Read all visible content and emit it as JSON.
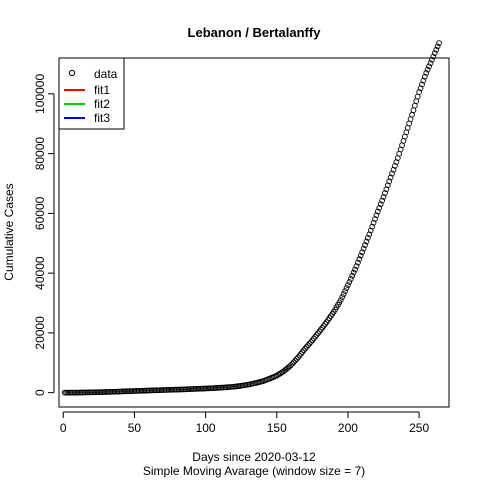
{
  "chart_data": {
    "type": "scatter",
    "title": "Lebanon / Bertalanffy",
    "xlabel": "Days since 2020-03-12",
    "xlabel2": "Simple Moving Avarage (window size = 7)",
    "ylabel": "Cumulative Cases",
    "xlim": [
      -3,
      271
    ],
    "ylim": [
      -4800,
      112000
    ],
    "x_ticks": [
      0,
      50,
      100,
      150,
      200,
      250
    ],
    "y_ticks": [
      0,
      20000,
      40000,
      60000,
      80000,
      100000
    ],
    "legend": {
      "position": "top-left",
      "items": [
        {
          "label": "data",
          "symbol": "circle",
          "color": "#000000"
        },
        {
          "label": "fit1",
          "symbol": "line",
          "color": "#ff0000"
        },
        {
          "label": "fit2",
          "symbol": "line",
          "color": "#00cd00"
        },
        {
          "label": "fit3",
          "symbol": "line",
          "color": "#0000ff"
        }
      ]
    },
    "series": [
      {
        "marker": "open-circle",
        "color": "#000000",
        "x": [
          1,
          5,
          10,
          15,
          20,
          25,
          30,
          35,
          40,
          45,
          50,
          55,
          60,
          65,
          70,
          75,
          80,
          85,
          90,
          95,
          100,
          105,
          110,
          115,
          120,
          125,
          130,
          135,
          140,
          145,
          150,
          155,
          160,
          165,
          170,
          175,
          180,
          185,
          190,
          195,
          200,
          205,
          210,
          215,
          220,
          225,
          230,
          235,
          240,
          245,
          250,
          255,
          260,
          264
        ],
        "y": [
          0,
          5,
          30,
          70,
          110,
          160,
          230,
          300,
          380,
          480,
          550,
          640,
          720,
          800,
          880,
          950,
          1020,
          1100,
          1200,
          1300,
          1400,
          1500,
          1650,
          1800,
          2000,
          2300,
          2700,
          3200,
          3800,
          4700,
          5700,
          7200,
          9200,
          11800,
          14800,
          17500,
          20500,
          23600,
          27000,
          31000,
          36000,
          41200,
          47000,
          53000,
          59400,
          65500,
          72000,
          78500,
          85700,
          93000,
          100600,
          107000,
          112500,
          117000
        ]
      }
    ]
  }
}
